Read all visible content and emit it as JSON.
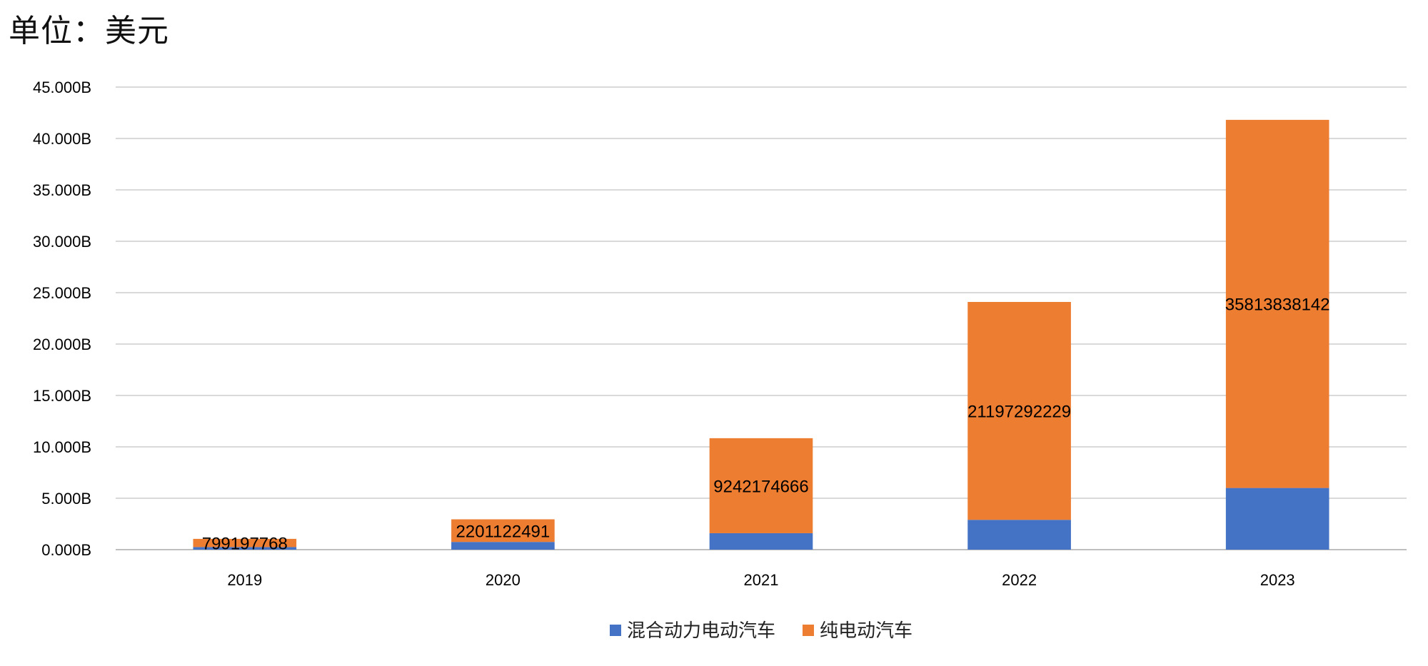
{
  "unit_label": "单位：美元",
  "chart_data": {
    "type": "bar",
    "stacked": true,
    "title": "",
    "xlabel": "",
    "ylabel": "",
    "categories": [
      "2019",
      "2020",
      "2021",
      "2022",
      "2023"
    ],
    "y_ticks": [
      "0.000B",
      "5.000B",
      "10.000B",
      "15.000B",
      "20.000B",
      "25.000B",
      "30.000B",
      "35.000B",
      "40.000B",
      "45.000B"
    ],
    "ylim": [
      0,
      45000000000
    ],
    "grid": true,
    "legend_position": "bottom",
    "series": [
      {
        "name": "混合动力电动汽车",
        "color": "#4472C4",
        "values": [
          250000000,
          750000000,
          1600000000,
          2900000000,
          6000000000
        ],
        "show_labels": false
      },
      {
        "name": "纯电动汽车",
        "color": "#ED7D31",
        "values": [
          799197768,
          2201122491,
          9242174666,
          21197292229,
          35813838142
        ],
        "show_labels": true,
        "labels": [
          "799197768",
          "2201122491",
          "9242174666",
          "21197292229",
          "35813838142"
        ]
      }
    ]
  }
}
